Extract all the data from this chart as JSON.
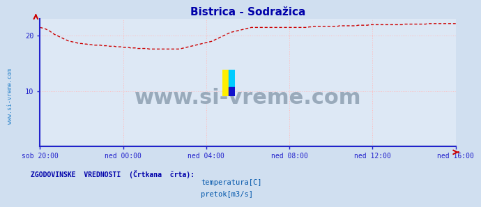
{
  "title": "Bistrica - Sodražica",
  "title_color": "#0000aa",
  "title_fontsize": 11,
  "bg_color": "#d0dff0",
  "plot_bg_color": "#dde8f5",
  "grid_color": "#ffbbbb",
  "axis_color": "#2222cc",
  "xlabel_ticks": [
    "sob 20:00",
    "ned 00:00",
    "ned 04:00",
    "ned 08:00",
    "ned 12:00",
    "ned 16:00"
  ],
  "yticks": [
    10,
    20
  ],
  "ytick_labels": [
    "10",
    "20"
  ],
  "ylim": [
    0,
    23
  ],
  "temp_color": "#cc0000",
  "flow_color": "#00bb00",
  "watermark_text": "www.si-vreme.com",
  "watermark_color": "#99aabb",
  "watermark_fontsize": 22,
  "sidebar_text": "www.si-vreme.com",
  "sidebar_color": "#3388cc",
  "legend_title": "ZGODOVINSKE  VREDNOSTI  (Črtkana  črta):",
  "legend_title_color": "#0000aa",
  "legend_label1": "temperatura[C]",
  "legend_label2": "pretok[m3/s]",
  "legend_color": "#0055aa",
  "temp_data": [
    21.5,
    21.4,
    21.3,
    21.1,
    20.9,
    20.6,
    20.3,
    20.1,
    19.9,
    19.7,
    19.5,
    19.3,
    19.1,
    19.0,
    18.9,
    18.8,
    18.7,
    18.6,
    18.6,
    18.5,
    18.5,
    18.4,
    18.4,
    18.3,
    18.3,
    18.3,
    18.3,
    18.2,
    18.2,
    18.2,
    18.1,
    18.1,
    18.1,
    18.0,
    18.0,
    18.0,
    17.9,
    17.9,
    17.9,
    17.8,
    17.8,
    17.8,
    17.7,
    17.7,
    17.7,
    17.7,
    17.7,
    17.6,
    17.6,
    17.6,
    17.6,
    17.6,
    17.6,
    17.6,
    17.6,
    17.6,
    17.6,
    17.6,
    17.6,
    17.6,
    17.6,
    17.7,
    17.8,
    17.9,
    18.0,
    18.1,
    18.2,
    18.3,
    18.4,
    18.5,
    18.6,
    18.7,
    18.8,
    18.9,
    19.0,
    19.2,
    19.4,
    19.6,
    19.8,
    20.0,
    20.2,
    20.4,
    20.6,
    20.7,
    20.8,
    20.9,
    21.0,
    21.1,
    21.2,
    21.3,
    21.4,
    21.5,
    21.5,
    21.5,
    21.5,
    21.5,
    21.5,
    21.5,
    21.5,
    21.5,
    21.5,
    21.5,
    21.5,
    21.5,
    21.5,
    21.5,
    21.5,
    21.5,
    21.5,
    21.5,
    21.5,
    21.5,
    21.5,
    21.5,
    21.5,
    21.5,
    21.6,
    21.6,
    21.7,
    21.7,
    21.7,
    21.7,
    21.7,
    21.7,
    21.7,
    21.7,
    21.7,
    21.7,
    21.7,
    21.8,
    21.8,
    21.8,
    21.8,
    21.8,
    21.8,
    21.8,
    21.8,
    21.9,
    21.9,
    21.9,
    21.9,
    21.9,
    22.0,
    22.0,
    22.0,
    22.0,
    22.0,
    22.0,
    22.0,
    22.0,
    22.0,
    22.0,
    22.0,
    22.0,
    22.0,
    22.0,
    22.0,
    22.1,
    22.1,
    22.1,
    22.1,
    22.1,
    22.1,
    22.1,
    22.1,
    22.1,
    22.1,
    22.2,
    22.2,
    22.2,
    22.2,
    22.2,
    22.2,
    22.2,
    22.2,
    22.2,
    22.2,
    22.2,
    22.2,
    22.2
  ],
  "flow_data_val": 0.0
}
